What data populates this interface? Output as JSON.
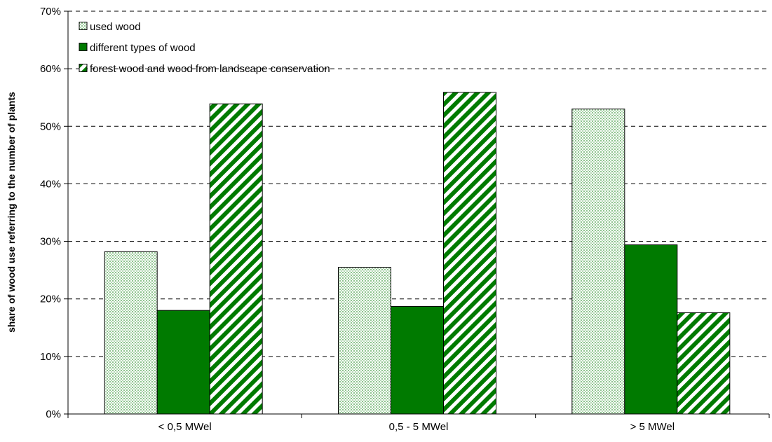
{
  "chart_data": {
    "type": "bar",
    "title": "",
    "xlabel": "",
    "ylabel": "share of wood use referring to the number of plants",
    "categories": [
      "< 0,5 MWel",
      "0,5 - 5 MWel",
      "> 5 MWel"
    ],
    "ylim": [
      0,
      70
    ],
    "yticks": [
      "0%",
      "10%",
      "20%",
      "30%",
      "40%",
      "50%",
      "60%",
      "70%"
    ],
    "grid": "horizontal dashed",
    "legend_position": "top-left",
    "series": [
      {
        "name": "used wood",
        "values": [
          28.2,
          25.5,
          53.0
        ],
        "color": "#e6efe6",
        "pattern": "dotted"
      },
      {
        "name": "different types of wood",
        "values": [
          18.0,
          18.7,
          29.4
        ],
        "color": "#007a00",
        "pattern": "solid"
      },
      {
        "name": "forest wood and wood from landscape conservation",
        "values": [
          53.9,
          55.9,
          17.6
        ],
        "color": "#007a00",
        "pattern": "diagonal-stripes"
      }
    ]
  }
}
